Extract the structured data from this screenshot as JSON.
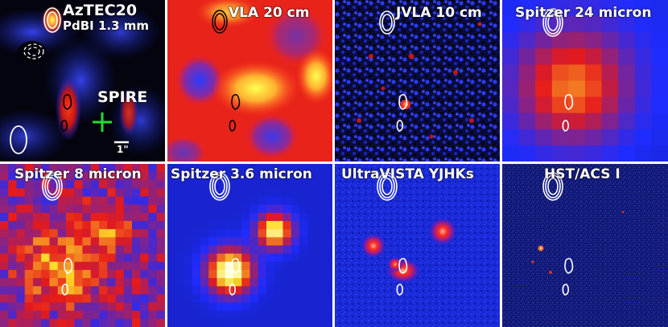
{
  "panels": [
    {
      "id": "p1",
      "title": "AzTEC20",
      "subtitle": "PdBI 1.3 mm",
      "annotation": "SPIRE",
      "scale": "1\""
    },
    {
      "id": "p2",
      "title": "VLA 20 cm"
    },
    {
      "id": "p3",
      "title": "JVLA 10 cm"
    },
    {
      "id": "p4",
      "title": "Spitzer 24 micron"
    },
    {
      "id": "p5",
      "title": "Spitzer 8 micron"
    },
    {
      "id": "p6",
      "title": "Spitzer 3.6 micron"
    },
    {
      "id": "p7",
      "title": "UltraVISTA YJHKs"
    },
    {
      "id": "p8",
      "title": "HST/ACS I"
    }
  ],
  "colors": {
    "background_dark": "#000020",
    "blue": "#1a2cff",
    "red": "#ff1a1a",
    "yellow": "#ffff40",
    "marker": "#22dd33"
  },
  "icons": [
    "contour-overlay",
    "beam-ellipse",
    "cross-marker",
    "scale-bar"
  ]
}
